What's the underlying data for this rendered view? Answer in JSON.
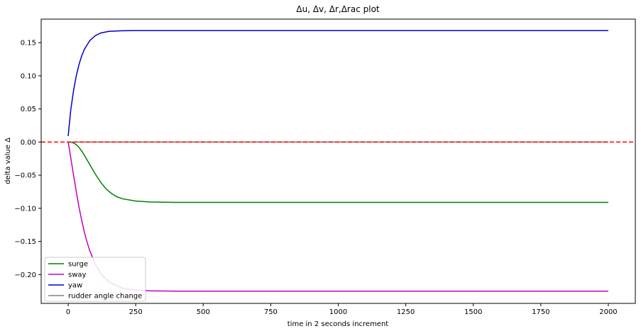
{
  "chart_data": {
    "type": "line",
    "title": "Δu, Δv, Δr,Δrac  plot",
    "xlabel": "time in 2 seconds increment",
    "ylabel": "delta value Δ",
    "xlim": [
      -100,
      2100
    ],
    "ylim": [
      -0.2435,
      0.1855
    ],
    "x_ticks": [
      0,
      250,
      500,
      750,
      1000,
      1250,
      1500,
      1750,
      2000
    ],
    "y_ticks": [
      -0.2,
      -0.15,
      -0.1,
      -0.05,
      0.0,
      0.05,
      0.1,
      0.15
    ],
    "x_tick_labels": [
      "0",
      "250",
      "500",
      "750",
      "1000",
      "1250",
      "1500",
      "1750",
      "2000"
    ],
    "y_tick_labels": [
      "−0.20",
      "−0.15",
      "−0.10",
      "−0.05",
      "0.00",
      "0.05",
      "0.10",
      "0.15"
    ],
    "grid": false,
    "legend_position": "lower-left",
    "reference_line": {
      "y": 0.0,
      "color": "#ff0000",
      "style": "dashed"
    },
    "series": [
      {
        "name": "surge",
        "color": "#008000",
        "x": [
          0,
          10,
          20,
          30,
          40,
          50,
          60,
          70,
          80,
          90,
          100,
          120,
          140,
          160,
          180,
          200,
          250,
          300,
          350,
          400,
          500,
          750,
          1000,
          1250,
          1500,
          1750,
          2000
        ],
        "y": [
          0.0,
          0.0,
          -0.0015,
          -0.004,
          -0.008,
          -0.0135,
          -0.02,
          -0.027,
          -0.034,
          -0.041,
          -0.048,
          -0.0605,
          -0.0705,
          -0.0775,
          -0.0825,
          -0.0855,
          -0.089,
          -0.0904,
          -0.0908,
          -0.091,
          -0.091,
          -0.091,
          -0.091,
          -0.091,
          -0.091,
          -0.091,
          -0.091
        ]
      },
      {
        "name": "sway",
        "color": "#c000c0",
        "x": [
          0,
          5,
          10,
          20,
          30,
          40,
          50,
          60,
          70,
          80,
          100,
          120,
          150,
          200,
          250,
          300,
          400,
          500,
          750,
          1000,
          1250,
          1500,
          1750,
          2000
        ],
        "y": [
          0.0,
          -0.012,
          -0.025,
          -0.05,
          -0.075,
          -0.098,
          -0.118,
          -0.136,
          -0.151,
          -0.164,
          -0.184,
          -0.198,
          -0.211,
          -0.2205,
          -0.2235,
          -0.2245,
          -0.225,
          -0.225,
          -0.225,
          -0.225,
          -0.225,
          -0.225,
          -0.225,
          -0.225
        ]
      },
      {
        "name": "yaw",
        "color": "#0000cc",
        "x": [
          0,
          5,
          10,
          20,
          30,
          40,
          50,
          60,
          80,
          100,
          120,
          150,
          200,
          250,
          300,
          500,
          750,
          1000,
          1250,
          1500,
          1750,
          2000
        ],
        "y": [
          0.009,
          0.03,
          0.05,
          0.078,
          0.1,
          0.117,
          0.13,
          0.14,
          0.153,
          0.1605,
          0.1645,
          0.167,
          0.168,
          0.1683,
          0.1683,
          0.1683,
          0.1683,
          0.1683,
          0.1683,
          0.1683,
          0.1683,
          0.1683
        ]
      },
      {
        "name": "rudder angle change",
        "color": "#808080",
        "x": [
          0,
          2000
        ],
        "y": [
          0.0,
          0.0
        ]
      }
    ]
  }
}
